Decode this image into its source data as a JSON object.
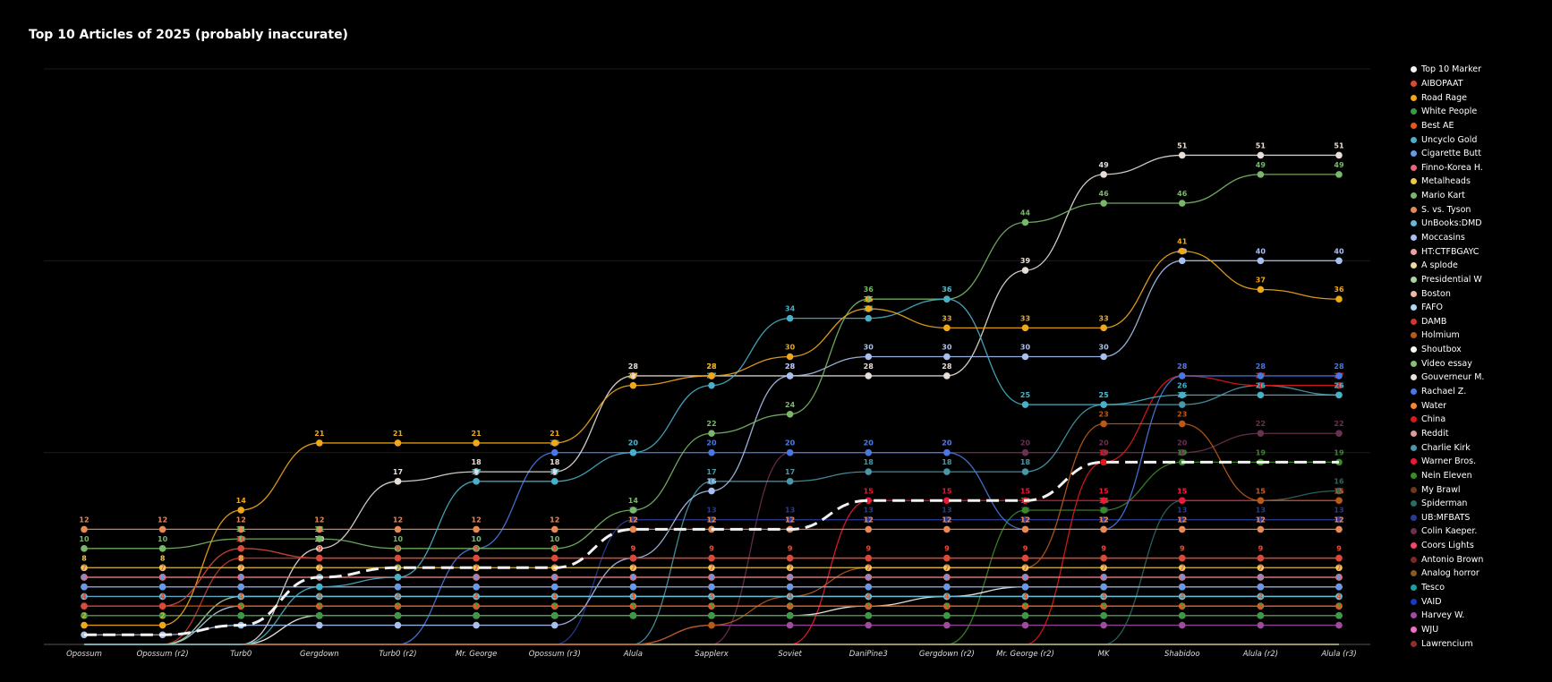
{
  "chart_data": {
    "type": "line",
    "title": "Top 10 Articles of 2025 (probably inaccurate)",
    "xlabel": "",
    "ylabel": "",
    "ylim": [
      0,
      60
    ],
    "grid": true,
    "legend_placement": "right",
    "categories": [
      "Opossum",
      "Opossum (r2)",
      "Turb0",
      "Gergdown",
      "Turb0 (r2)",
      "Mr. George",
      "Opossum (r3)",
      "Alula",
      "Sapplerx",
      "Soviet",
      "DaniPine3",
      "Gergdown (r2)",
      "Mr. George (r2)",
      "MK",
      "Shabidoo",
      "Alula (r2)",
      "Alula (r3)"
    ],
    "series": [
      {
        "name": "Top 10 Marker",
        "color": "#f2f2f2",
        "dashed": true,
        "values": [
          1,
          1,
          2,
          7,
          8,
          8,
          8,
          12,
          12,
          12,
          15,
          15,
          15,
          19,
          19,
          19,
          19
        ]
      },
      {
        "name": "AIBOPAAT",
        "color": "#d94a3a",
        "values": [
          4,
          4,
          10,
          9,
          9,
          9,
          9,
          9,
          9,
          9,
          9,
          9,
          9,
          9,
          9,
          9,
          9
        ]
      },
      {
        "name": "Road Rage",
        "color": "#f0a818",
        "values": [
          2,
          2,
          14,
          21,
          21,
          21,
          21,
          27,
          28,
          30,
          35,
          33,
          33,
          33,
          41,
          37,
          36
        ]
      },
      {
        "name": "White People",
        "color": "#3a9a48",
        "values": [
          3,
          3,
          3,
          3,
          3,
          3,
          3,
          3,
          3,
          3,
          3,
          3,
          3,
          3,
          3,
          3,
          3
        ]
      },
      {
        "name": "Best AE",
        "color": "#e85818",
        "values": [
          4,
          4,
          4,
          4,
          4,
          4,
          4,
          4,
          4,
          4,
          4,
          4,
          4,
          4,
          4,
          4,
          4
        ]
      },
      {
        "name": "Uncyclo Gold",
        "color": "#48b0c8",
        "values": [
          0,
          0,
          0,
          6,
          7,
          17,
          17,
          20,
          27,
          34,
          34,
          36,
          25,
          25,
          26,
          26,
          26
        ]
      },
      {
        "name": "Cigarette Butt",
        "color": "#6a98e8",
        "values": [
          6,
          6,
          6,
          6,
          6,
          6,
          6,
          6,
          6,
          6,
          6,
          6,
          6,
          6,
          6,
          6,
          6
        ]
      },
      {
        "name": "Finno-Korea H.",
        "color": "#e06a78",
        "values": [
          7,
          7,
          7,
          7,
          7,
          7,
          7,
          7,
          7,
          7,
          7,
          7,
          7,
          7,
          7,
          7,
          7
        ]
      },
      {
        "name": "Metalheads",
        "color": "#f0c848",
        "values": [
          8,
          8,
          8,
          8,
          8,
          8,
          8,
          8,
          8,
          8,
          8,
          8,
          8,
          8,
          8,
          8,
          8
        ]
      },
      {
        "name": "Mario Kart",
        "color": "#78b868",
        "values": [
          10,
          10,
          11,
          11,
          10,
          10,
          10,
          14,
          22,
          24,
          36,
          36,
          44,
          46,
          46,
          49,
          49
        ]
      },
      {
        "name": "S. vs. Tyson",
        "color": "#e88a58",
        "values": [
          12,
          12,
          12,
          12,
          12,
          12,
          12,
          12,
          12,
          12,
          12,
          12,
          12,
          12,
          12,
          12,
          12
        ]
      },
      {
        "name": "UnBooks:DMD",
        "color": "#68b8d8",
        "values": [
          5,
          5,
          5,
          5,
          5,
          5,
          5,
          5,
          5,
          5,
          5,
          5,
          5,
          5,
          5,
          5,
          5
        ]
      },
      {
        "name": "Moccasins",
        "color": "#a8c0f0",
        "values": [
          1,
          1,
          2,
          2,
          2,
          2,
          2,
          9,
          16,
          28,
          30,
          30,
          30,
          30,
          40,
          40,
          40
        ]
      },
      {
        "name": "HT:CTFBGAYC",
        "color": "#f0a0a0",
        "values": [
          3,
          3,
          3,
          3,
          3,
          3,
          3,
          3,
          3,
          3,
          3,
          3,
          3,
          3,
          3,
          3,
          3
        ]
      },
      {
        "name": "A splode",
        "color": "#f0d8a0",
        "values": [
          7,
          7,
          7,
          7,
          7,
          7,
          7,
          7,
          7,
          7,
          7,
          7,
          7,
          7,
          7,
          7,
          7
        ]
      },
      {
        "name": "Presidential W",
        "color": "#a8d8a0",
        "values": [
          0,
          0,
          5,
          5,
          5,
          5,
          5,
          5,
          5,
          5,
          5,
          5,
          5,
          5,
          5,
          5,
          5
        ]
      },
      {
        "name": "Boston",
        "color": "#f0b8a0",
        "values": [
          6,
          6,
          6,
          6,
          6,
          6,
          6,
          6,
          6,
          6,
          6,
          6,
          6,
          6,
          6,
          6,
          6
        ]
      },
      {
        "name": "FAFO",
        "color": "#b0d8f0",
        "values": [
          0,
          0,
          4,
          4,
          4,
          4,
          4,
          4,
          4,
          4,
          4,
          4,
          4,
          4,
          4,
          4,
          4
        ]
      },
      {
        "name": "DAMB",
        "color": "#c83a30",
        "values": [
          0,
          0,
          9,
          9,
          9,
          9,
          9,
          9,
          9,
          9,
          9,
          9,
          9,
          9,
          9,
          9,
          9
        ]
      },
      {
        "name": "Holmium",
        "color": "#b85a18",
        "values": [
          0,
          0,
          0,
          0,
          0,
          0,
          0,
          0,
          2,
          5,
          8,
          8,
          8,
          23,
          23,
          15,
          15
        ]
      },
      {
        "name": "Shoutbox",
        "color": "#f8f8f0",
        "values": [
          0,
          0,
          0,
          3,
          3,
          3,
          3,
          3,
          3,
          3,
          4,
          5,
          6,
          6,
          6,
          6,
          6
        ]
      },
      {
        "name": "Video essay",
        "color": "#88c078",
        "values": [
          0,
          0,
          0,
          0,
          0,
          0,
          0,
          0,
          0,
          0,
          0,
          0,
          0,
          0,
          0,
          0,
          0
        ]
      },
      {
        "name": "Gouverneur M.",
        "color": "#e8e0d8",
        "values": [
          0,
          0,
          0,
          10,
          17,
          18,
          18,
          28,
          28,
          28,
          28,
          28,
          39,
          49,
          51,
          51,
          51
        ]
      },
      {
        "name": "Rachael Z.",
        "color": "#4878e0",
        "values": [
          0,
          0,
          0,
          0,
          0,
          10,
          20,
          20,
          20,
          20,
          20,
          20,
          12,
          12,
          28,
          28,
          28
        ]
      },
      {
        "name": "Water",
        "color": "#f08838",
        "values": [
          0,
          0,
          0,
          0,
          0,
          0,
          0,
          0,
          0,
          0,
          0,
          0,
          0,
          0,
          0,
          0,
          0
        ]
      },
      {
        "name": "China",
        "color": "#e01818",
        "values": [
          0,
          0,
          0,
          0,
          0,
          0,
          0,
          0,
          0,
          0,
          0,
          0,
          0,
          19,
          28,
          27,
          27
        ]
      },
      {
        "name": "Reddit",
        "color": "#e09898",
        "values": [
          0,
          0,
          0,
          0,
          0,
          0,
          0,
          0,
          0,
          0,
          0,
          0,
          0,
          0,
          0,
          0,
          0
        ]
      },
      {
        "name": "Charlie Kirk",
        "color": "#4898a8",
        "values": [
          0,
          0,
          0,
          0,
          0,
          0,
          0,
          0,
          17,
          17,
          18,
          18,
          18,
          25,
          25,
          27,
          26
        ]
      },
      {
        "name": "Warner Bros.",
        "color": "#f01838",
        "values": [
          0,
          0,
          0,
          0,
          0,
          0,
          0,
          0,
          0,
          0,
          15,
          15,
          15,
          15,
          15,
          15,
          15
        ]
      },
      {
        "name": "Nein Eleven",
        "color": "#3a8a28",
        "values": [
          0,
          0,
          0,
          0,
          0,
          0,
          0,
          0,
          0,
          0,
          0,
          0,
          14,
          14,
          19,
          19,
          19
        ]
      },
      {
        "name": "My Brawl",
        "color": "#6a3a18",
        "values": [
          0,
          0,
          0,
          0,
          0,
          0,
          0,
          0,
          0,
          0,
          0,
          0,
          0,
          0,
          0,
          0,
          0
        ]
      },
      {
        "name": "Spiderman",
        "color": "#2a6a68",
        "values": [
          0,
          0,
          0,
          0,
          0,
          0,
          0,
          0,
          0,
          0,
          0,
          0,
          0,
          0,
          15,
          15,
          16
        ]
      },
      {
        "name": "UB:MFBATS",
        "color": "#283a98",
        "values": [
          0,
          0,
          0,
          0,
          0,
          0,
          0,
          13,
          13,
          13,
          13,
          13,
          13,
          13,
          13,
          13,
          13
        ]
      },
      {
        "name": "Colin Kaeper.",
        "color": "#6a3050",
        "values": [
          0,
          0,
          0,
          0,
          0,
          0,
          0,
          0,
          0,
          20,
          20,
          20,
          20,
          20,
          20,
          22,
          22
        ]
      },
      {
        "name": "Coors Lights",
        "color": "#f04868",
        "values": [
          0,
          0,
          0,
          0,
          0,
          0,
          0,
          0,
          0,
          0,
          0,
          0,
          0,
          0,
          0,
          0,
          0
        ]
      },
      {
        "name": "Antonio Brown",
        "color": "#7a2828",
        "values": [
          0,
          0,
          0,
          0,
          0,
          0,
          0,
          0,
          0,
          0,
          0,
          0,
          0,
          0,
          0,
          0,
          0
        ]
      },
      {
        "name": "Analog horror",
        "color": "#8a5a20",
        "values": [
          0,
          0,
          0,
          0,
          0,
          0,
          0,
          0,
          0,
          0,
          0,
          0,
          0,
          0,
          0,
          0,
          0
        ]
      },
      {
        "name": "Tesco",
        "color": "#18a0a0",
        "values": [
          0,
          0,
          0,
          0,
          0,
          0,
          0,
          0,
          0,
          0,
          0,
          0,
          0,
          0,
          0,
          0,
          0
        ]
      },
      {
        "name": "VAID",
        "color": "#1838c8",
        "values": [
          0,
          0,
          0,
          0,
          0,
          0,
          0,
          0,
          0,
          0,
          0,
          0,
          0,
          0,
          0,
          0,
          0
        ]
      },
      {
        "name": "Harvey W.",
        "color": "#a04aa0",
        "values": [
          0,
          0,
          0,
          0,
          0,
          0,
          0,
          0,
          2,
          2,
          2,
          2,
          2,
          2,
          2,
          2,
          2
        ]
      },
      {
        "name": "WJU",
        "color": "#f070c8",
        "values": [
          0,
          0,
          0,
          0,
          0,
          0,
          0,
          0,
          0,
          0,
          0,
          0,
          0,
          0,
          0,
          0,
          0
        ]
      },
      {
        "name": "Lawrencium",
        "color": "#8a3030",
        "values": [
          0,
          0,
          0,
          0,
          0,
          0,
          0,
          0,
          0,
          0,
          0,
          0,
          0,
          0,
          0,
          0,
          0
        ]
      }
    ]
  }
}
